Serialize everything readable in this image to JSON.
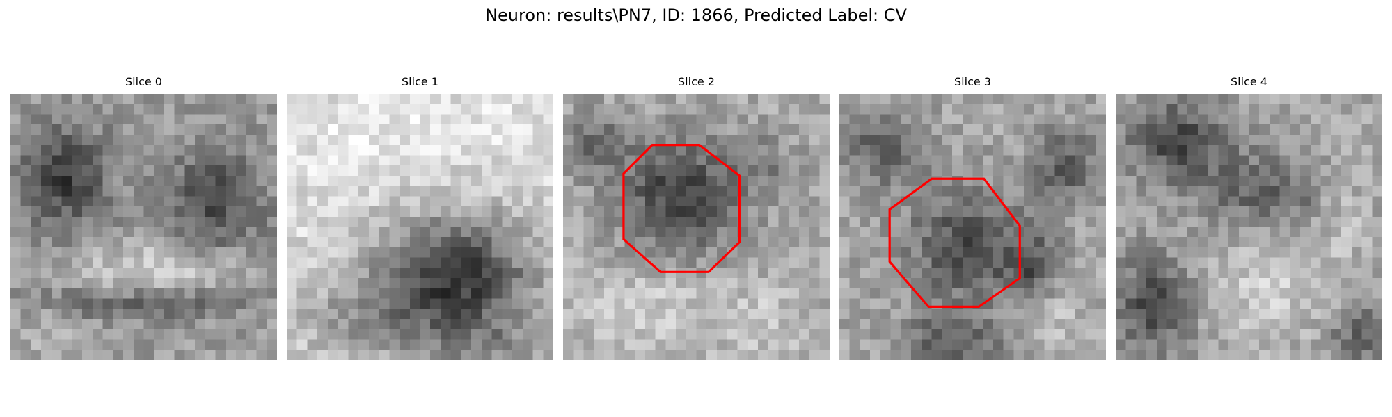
{
  "figure": {
    "title": "Neuron: results\\PN7, ID: 1866, Predicted Label: CV"
  },
  "panels": [
    {
      "title": "Slice 0",
      "image": "noisy-grayscale-microscopy-slice",
      "overlay": null
    },
    {
      "title": "Slice 1",
      "image": "noisy-grayscale-microscopy-slice",
      "overlay": null
    },
    {
      "title": "Slice 2",
      "image": "noisy-grayscale-microscopy-slice",
      "overlay": "red-octagon-outline"
    },
    {
      "title": "Slice 3",
      "image": "noisy-grayscale-microscopy-slice",
      "overlay": "red-octagon-outline"
    },
    {
      "title": "Slice 4",
      "image": "noisy-grayscale-microscopy-slice",
      "overlay": null
    }
  ],
  "colors": {
    "overlay": "#ff0000"
  }
}
